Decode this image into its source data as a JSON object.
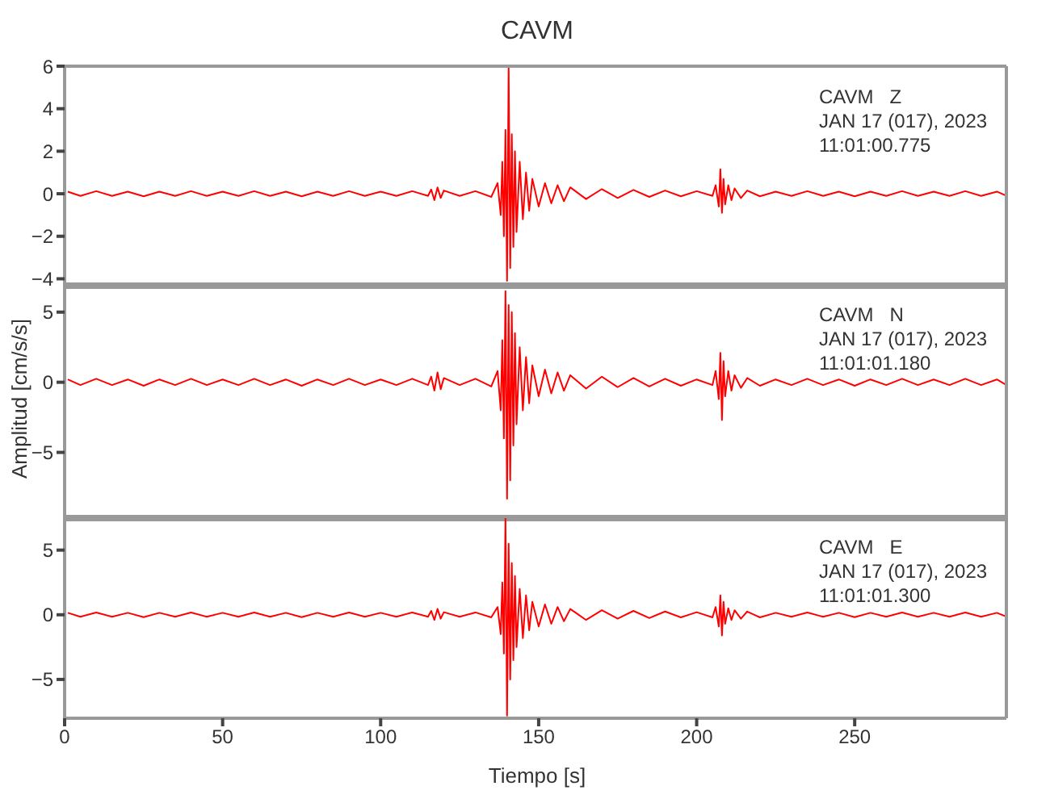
{
  "chart_data": [
    {
      "type": "line",
      "title": "CAVM",
      "annotations": [
        "CAVM   Z",
        "JAN 17 (017), 2023",
        "11:01:00.775"
      ],
      "tick_labels": "y",
      "xlim": [
        0,
        298
      ],
      "xticks": [
        0,
        50,
        100,
        150,
        200,
        250
      ],
      "ylim": [
        -4.4,
        6
      ],
      "yticks": [
        -4,
        -2,
        0,
        2,
        4,
        6
      ],
      "x": [
        1,
        5,
        10,
        15,
        20,
        25,
        30,
        35,
        40,
        45,
        50,
        55,
        60,
        65,
        70,
        75,
        80,
        85,
        90,
        95,
        100,
        105,
        110,
        115,
        116,
        117,
        118,
        119,
        120,
        125,
        130,
        135,
        137,
        138,
        138.5,
        139,
        139.5,
        140,
        140.5,
        141,
        141.5,
        142,
        142.5,
        143,
        144,
        145,
        146,
        147,
        148,
        150,
        152,
        154,
        156,
        158,
        160,
        165,
        170,
        175,
        180,
        185,
        190,
        195,
        200,
        205,
        206,
        207,
        207.5,
        208,
        208.5,
        209,
        210,
        211,
        212,
        214,
        216,
        220,
        225,
        230,
        235,
        240,
        245,
        250,
        255,
        260,
        265,
        270,
        275,
        280,
        285,
        290,
        295,
        298
      ],
      "series": [
        {
          "color": "#ff0000",
          "values": [
            0.1,
            -0.1,
            0.12,
            -0.1,
            0.1,
            -0.12,
            0.1,
            -0.1,
            0.12,
            -0.1,
            0.1,
            -0.1,
            0.12,
            -0.1,
            0.1,
            -0.12,
            0.1,
            -0.1,
            0.12,
            -0.1,
            0.1,
            -0.1,
            0.12,
            -0.1,
            0.2,
            -0.3,
            0.3,
            -0.2,
            0.15,
            -0.1,
            0.12,
            -0.15,
            0.5,
            -1,
            1.5,
            -2,
            3,
            -4.1,
            6,
            -3.5,
            2.8,
            -2.5,
            2,
            -1.8,
            1.5,
            -1.2,
            1,
            -0.8,
            0.7,
            -0.6,
            0.5,
            -0.45,
            0.4,
            -0.35,
            0.3,
            -0.25,
            0.22,
            -0.2,
            0.18,
            -0.15,
            0.15,
            -0.12,
            0.12,
            -0.1,
            0.4,
            -0.6,
            1.15,
            -0.9,
            0.7,
            -0.5,
            0.4,
            -0.3,
            0.25,
            -0.2,
            0.15,
            -0.12,
            0.1,
            -0.1,
            0.12,
            -0.1,
            0.1,
            -0.12,
            0.1,
            -0.1,
            0.12,
            -0.1,
            0.1,
            -0.1,
            0.12,
            -0.1,
            0.1,
            -0.1
          ]
        }
      ]
    },
    {
      "type": "line",
      "ylabel": "Amplitud [cm/s/s]",
      "annotations": [
        "CAVM   N",
        "JAN 17 (017), 2023",
        "11:01:01.180"
      ],
      "tick_labels": "y",
      "xlim": [
        0,
        298
      ],
      "xticks": [
        0,
        50,
        100,
        150,
        200,
        250
      ],
      "ylim": [
        -9.8,
        7
      ],
      "yticks": [
        -5,
        0,
        5
      ],
      "x": [
        1,
        5,
        10,
        15,
        20,
        25,
        30,
        35,
        40,
        45,
        50,
        55,
        60,
        65,
        70,
        75,
        80,
        85,
        90,
        95,
        100,
        105,
        110,
        115,
        116,
        117,
        118,
        119,
        120,
        125,
        130,
        135,
        137,
        138,
        138.5,
        139,
        139.5,
        140,
        140.5,
        141,
        141.5,
        142,
        142.5,
        143,
        144,
        145,
        146,
        147,
        148,
        150,
        152,
        154,
        156,
        158,
        160,
        165,
        170,
        175,
        180,
        185,
        190,
        195,
        200,
        205,
        206,
        207,
        207.5,
        208,
        208.5,
        209,
        210,
        211,
        212,
        214,
        216,
        220,
        225,
        230,
        235,
        240,
        245,
        250,
        255,
        260,
        265,
        270,
        275,
        280,
        285,
        290,
        295,
        298
      ],
      "series": [
        {
          "color": "#ff0000",
          "values": [
            0.2,
            -0.2,
            0.25,
            -0.2,
            0.2,
            -0.25,
            0.2,
            -0.2,
            0.25,
            -0.2,
            0.2,
            -0.2,
            0.25,
            -0.2,
            0.2,
            -0.25,
            0.2,
            -0.2,
            0.25,
            -0.2,
            0.2,
            -0.2,
            0.25,
            -0.2,
            0.4,
            -0.6,
            0.7,
            -0.5,
            0.3,
            -0.2,
            0.25,
            -0.3,
            0.8,
            -2,
            3,
            -4,
            6.5,
            -8.3,
            5.5,
            -7,
            5,
            -4.5,
            3.5,
            -3,
            2.5,
            -2,
            1.8,
            -1.5,
            1.2,
            -1,
            0.9,
            -0.8,
            0.7,
            -0.6,
            0.5,
            -0.45,
            0.4,
            -0.35,
            0.3,
            -0.3,
            0.25,
            -0.25,
            0.2,
            -0.2,
            0.8,
            -1.2,
            2.1,
            -2.7,
            1.5,
            -1,
            0.8,
            -0.6,
            0.5,
            -0.4,
            0.3,
            -0.25,
            0.2,
            -0.2,
            0.25,
            -0.2,
            0.2,
            -0.25,
            0.2,
            -0.2,
            0.25,
            -0.2,
            0.2,
            -0.2,
            0.25,
            -0.2,
            0.2,
            -0.2
          ]
        }
      ]
    },
    {
      "type": "line",
      "xlabel": "Tiempo [s]",
      "annotations": [
        "CAVM   E",
        "JAN 17 (017), 2023",
        "11:01:01.300"
      ],
      "xlim": [
        0,
        298
      ],
      "xticks": [
        0,
        50,
        100,
        150,
        200,
        250
      ],
      "ylim": [
        -8,
        7.6
      ],
      "yticks": [
        -5,
        0,
        5
      ],
      "x": [
        1,
        5,
        10,
        15,
        20,
        25,
        30,
        35,
        40,
        45,
        50,
        55,
        60,
        65,
        70,
        75,
        80,
        85,
        90,
        95,
        100,
        105,
        110,
        115,
        116,
        117,
        118,
        119,
        120,
        125,
        130,
        135,
        137,
        138,
        138.5,
        139,
        139.5,
        140,
        140.5,
        141,
        141.5,
        142,
        142.5,
        143,
        144,
        145,
        146,
        147,
        148,
        150,
        152,
        154,
        156,
        158,
        160,
        165,
        170,
        175,
        180,
        185,
        190,
        195,
        200,
        205,
        206,
        207,
        207.5,
        208,
        208.5,
        209,
        210,
        211,
        212,
        214,
        216,
        220,
        225,
        230,
        235,
        240,
        245,
        250,
        255,
        260,
        265,
        270,
        275,
        280,
        285,
        290,
        295,
        298
      ],
      "series": [
        {
          "color": "#ff0000",
          "values": [
            0.15,
            -0.15,
            0.18,
            -0.15,
            0.15,
            -0.18,
            0.15,
            -0.15,
            0.18,
            -0.15,
            0.15,
            -0.15,
            0.18,
            -0.15,
            0.15,
            -0.18,
            0.15,
            -0.15,
            0.18,
            -0.15,
            0.15,
            -0.15,
            0.18,
            -0.15,
            0.3,
            -0.4,
            0.45,
            -0.3,
            0.2,
            -0.15,
            0.18,
            -0.2,
            0.6,
            -1.5,
            2.5,
            -3,
            7.5,
            -7.8,
            5.5,
            -5,
            4,
            -3.5,
            3,
            -2.5,
            2,
            -1.8,
            1.5,
            -1.2,
            1,
            -0.9,
            0.8,
            -0.7,
            0.6,
            -0.5,
            0.45,
            -0.4,
            0.35,
            -0.3,
            0.3,
            -0.25,
            0.25,
            -0.2,
            0.2,
            -0.2,
            0.6,
            -0.9,
            1.5,
            -1.6,
            1,
            -0.7,
            0.5,
            -0.4,
            0.35,
            -0.3,
            0.25,
            -0.2,
            0.15,
            -0.15,
            0.18,
            -0.15,
            0.15,
            -0.18,
            0.15,
            -0.15,
            0.18,
            -0.15,
            0.15,
            -0.15,
            0.18,
            -0.15,
            0.15,
            -0.15
          ]
        }
      ]
    }
  ]
}
